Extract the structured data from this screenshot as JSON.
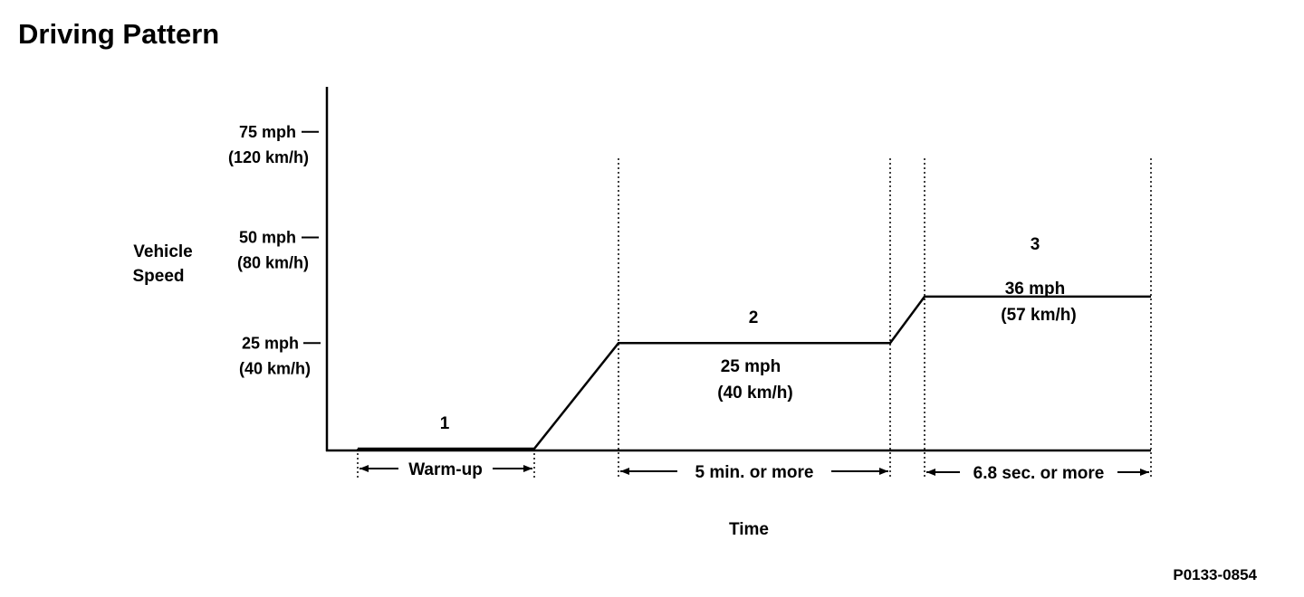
{
  "title": "Driving Pattern",
  "figure_id": "P0133-0854",
  "chart_data": {
    "type": "line",
    "title": "Driving Pattern",
    "xlabel": "Time",
    "ylabel": [
      "Vehicle",
      "Speed"
    ],
    "y_unit": "mph",
    "ylim": [
      0,
      75
    ],
    "grid": false,
    "y_ticks": [
      {
        "value": 75,
        "label": "75 mph",
        "sublabel": "(120 km/h)"
      },
      {
        "value": 50,
        "label": "50 mph",
        "sublabel": "(80 km/h)"
      },
      {
        "value": 25,
        "label": "25 mph",
        "sublabel": "(40 km/h)"
      }
    ],
    "series": [
      {
        "points": [
          [
            0,
            0
          ],
          [
            1,
            0
          ],
          [
            1.5,
            25
          ],
          [
            3,
            25
          ],
          [
            3.2,
            36
          ],
          [
            4.5,
            36
          ]
        ]
      }
    ],
    "steps": [
      {
        "label": "1",
        "x_start": 0,
        "x_end": 1,
        "speed_label": "",
        "speed_sublabel": "",
        "duration": "Warm-up"
      },
      {
        "label": "2",
        "x_start": 1.5,
        "x_end": 3,
        "speed_label": "25 mph",
        "speed_sublabel": "(40 km/h)",
        "duration": "5 min. or more"
      },
      {
        "label": "3",
        "x_start": 3.2,
        "x_end": 4.5,
        "speed_label": "36 mph",
        "speed_sublabel": "(57 km/h)",
        "duration": "6.8 sec. or more"
      }
    ]
  }
}
